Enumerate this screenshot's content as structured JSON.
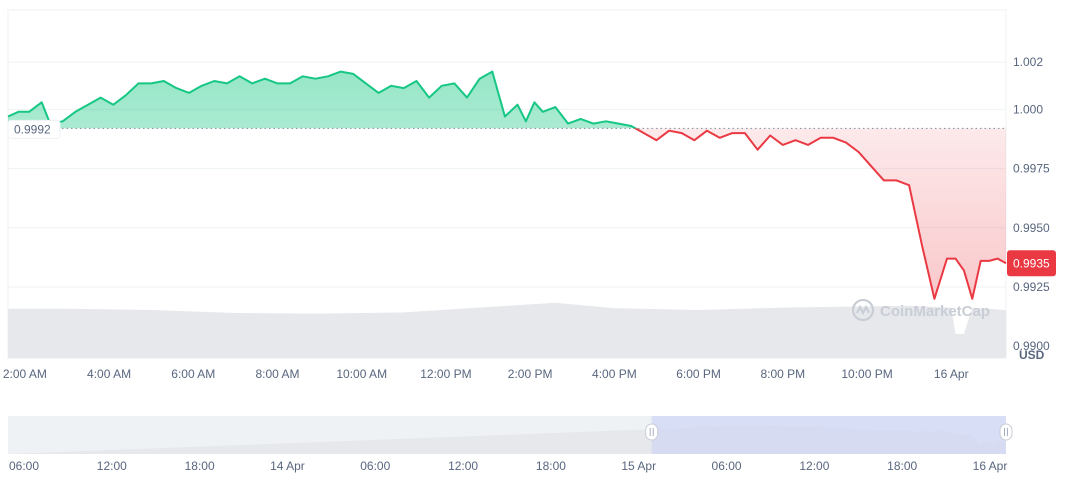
{
  "chart_data": {
    "type": "area",
    "currency_label": "USD",
    "watermark": "CoinMarketCap",
    "baseline": {
      "value": 0.9992,
      "label": "0.9992"
    },
    "current": {
      "value": 0.9935,
      "label": "0.9935"
    },
    "ylim": [
      0.9895,
      1.0042
    ],
    "y_ticks": [
      {
        "value": 1.002,
        "label": "1.002"
      },
      {
        "value": 1.0,
        "label": "1.000"
      },
      {
        "value": 0.9975,
        "label": "0.9975"
      },
      {
        "value": 0.995,
        "label": "0.9950"
      },
      {
        "value": 0.9925,
        "label": "0.9925"
      },
      {
        "value": 0.99,
        "label": "0.9900"
      }
    ],
    "x_range": [
      1.6,
      25.3
    ],
    "x_ticks": [
      {
        "value": 2,
        "label": "2:00 AM"
      },
      {
        "value": 4,
        "label": "4:00 AM"
      },
      {
        "value": 6,
        "label": "6:00 AM"
      },
      {
        "value": 8,
        "label": "8:00 AM"
      },
      {
        "value": 10,
        "label": "10:00 AM"
      },
      {
        "value": 12,
        "label": "12:00 PM"
      },
      {
        "value": 14,
        "label": "2:00 PM"
      },
      {
        "value": 16,
        "label": "4:00 PM"
      },
      {
        "value": 18,
        "label": "6:00 PM"
      },
      {
        "value": 20,
        "label": "8:00 PM"
      },
      {
        "value": 22,
        "label": "10:00 PM"
      },
      {
        "value": 24,
        "label": "16 Apr"
      }
    ],
    "colors": {
      "up": "#16c784",
      "down": "#ea3943",
      "tag_bg": "#ea3943",
      "baseline_tag_bg": "#ffffff",
      "volume": "#e6e8ec"
    },
    "price_series": {
      "x": [
        1.6,
        1.85,
        2.1,
        2.4,
        2.6,
        2.9,
        3.2,
        3.5,
        3.8,
        4.1,
        4.4,
        4.7,
        5.0,
        5.3,
        5.6,
        5.9,
        6.2,
        6.5,
        6.8,
        7.1,
        7.4,
        7.7,
        8.0,
        8.3,
        8.6,
        8.9,
        9.2,
        9.5,
        9.8,
        10.1,
        10.4,
        10.7,
        11.0,
        11.3,
        11.6,
        11.9,
        12.2,
        12.5,
        12.8,
        13.1,
        13.4,
        13.7,
        13.9,
        14.1,
        14.3,
        14.6,
        14.9,
        15.2,
        15.5,
        15.8,
        16.1,
        16.4,
        16.7,
        17.0,
        17.3,
        17.6,
        17.9,
        18.2,
        18.5,
        18.8,
        19.1,
        19.4,
        19.7,
        20.0,
        20.3,
        20.6,
        20.9,
        21.2,
        21.5,
        21.8,
        22.1,
        22.4,
        22.7,
        23.0,
        23.3,
        23.6,
        23.9,
        24.1,
        24.3,
        24.5,
        24.7,
        24.9,
        25.1,
        25.3
      ],
      "y": [
        0.9997,
        0.9999,
        0.9999,
        1.0003,
        0.9994,
        0.9995,
        0.9999,
        1.0002,
        1.0005,
        1.0002,
        1.0006,
        1.0011,
        1.0011,
        1.0012,
        1.0009,
        1.0007,
        1.001,
        1.0012,
        1.0011,
        1.0014,
        1.0011,
        1.0013,
        1.0011,
        1.0011,
        1.0014,
        1.0013,
        1.0014,
        1.0016,
        1.0015,
        1.0011,
        1.0007,
        1.001,
        1.0009,
        1.0012,
        1.0005,
        1.001,
        1.0011,
        1.0005,
        1.0013,
        1.0016,
        0.9997,
        1.0002,
        0.9995,
        1.0003,
        0.9999,
        1.0001,
        0.9994,
        0.9996,
        0.9994,
        0.9995,
        0.9994,
        0.9993,
        0.999,
        0.9987,
        0.9991,
        0.999,
        0.9987,
        0.9991,
        0.9988,
        0.999,
        0.999,
        0.9983,
        0.9989,
        0.9985,
        0.9987,
        0.9985,
        0.9988,
        0.9988,
        0.9986,
        0.9982,
        0.9976,
        0.997,
        0.997,
        0.9968,
        0.9943,
        0.992,
        0.9937,
        0.9937,
        0.9932,
        0.992,
        0.9936,
        0.9936,
        0.9937,
        0.9935
      ]
    },
    "volume_series": {
      "x": [
        1.6,
        3.0,
        5.0,
        7.0,
        9.0,
        11.0,
        13.0,
        14.6,
        16.0,
        18.0,
        20.0,
        22.0,
        23.0,
        24.0,
        24.1,
        24.3,
        24.5,
        25.3
      ],
      "y": [
        0.82,
        0.82,
        0.8,
        0.75,
        0.74,
        0.76,
        0.85,
        0.92,
        0.83,
        0.8,
        0.84,
        0.86,
        0.87,
        0.84,
        0.4,
        0.4,
        0.84,
        0.8
      ]
    },
    "navigator": {
      "x_ticks": [
        "06:00",
        "12:00",
        "18:00",
        "14 Apr",
        "06:00",
        "12:00",
        "18:00",
        "15 Apr",
        "06:00",
        "12:00",
        "18:00",
        "16 Apr"
      ],
      "selection_start": 0.645,
      "selection_end": 1.0
    }
  }
}
